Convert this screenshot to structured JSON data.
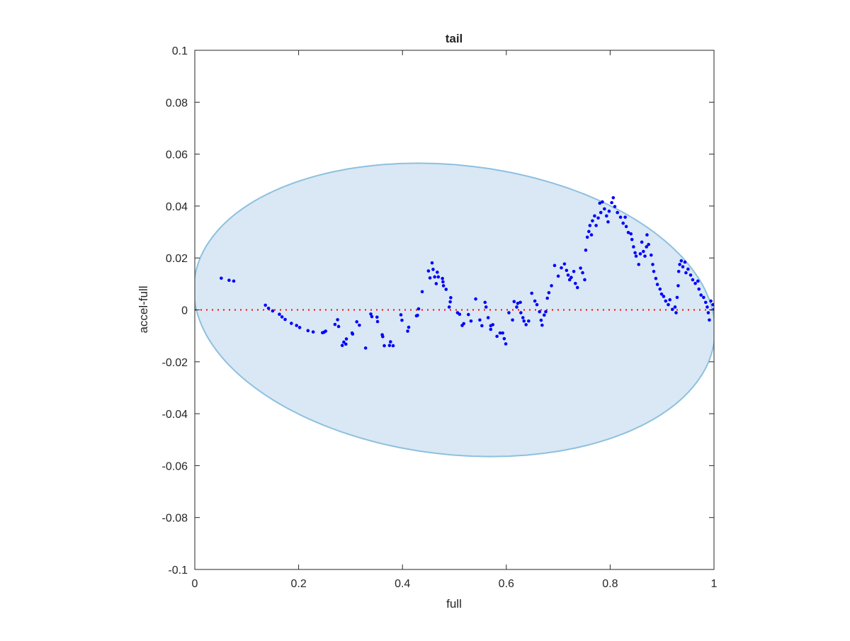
{
  "chart_data": {
    "type": "scatter",
    "title": "tail",
    "xlabel": "full",
    "ylabel": "accel-full",
    "xlim": [
      0,
      1
    ],
    "ylim": [
      -0.1,
      0.1
    ],
    "xticks": [
      0,
      0.2,
      0.4,
      0.6,
      0.8,
      1
    ],
    "xtick_labels": [
      "0",
      "0.2",
      "0.4",
      "0.6",
      "0.8",
      "1"
    ],
    "yticks": [
      0.1,
      0.08,
      0.06,
      0.04,
      0.02,
      0,
      -0.02,
      -0.04,
      -0.06,
      -0.08,
      -0.1
    ],
    "ytick_labels": [
      "0.1",
      "0.08",
      "0.06",
      "0.04",
      "0.02",
      "0",
      "-0.02",
      "-0.04",
      "-0.06",
      "-0.08",
      "-0.1"
    ],
    "grid": false,
    "colors": {
      "points": "#0000ff",
      "zero_line": "#ff0000",
      "ellipse_fill": "#d9e8f4",
      "ellipse_edge": "#8dc0e0"
    },
    "reference_line": {
      "y": 0,
      "style": "dotted"
    },
    "ellipse": {
      "cx": 0.5,
      "cy": 0,
      "rx": 0.497,
      "ry": 0.0565,
      "skew_x": -0.07
    },
    "points": [
      [
        0.051,
        0.0122
      ],
      [
        0.066,
        0.0114
      ],
      [
        0.075,
        0.0111
      ],
      [
        0.136,
        0.0018
      ],
      [
        0.142,
        0.0006
      ],
      [
        0.15,
        -0.0004
      ],
      [
        0.163,
        -0.0017
      ],
      [
        0.168,
        -0.0027
      ],
      [
        0.174,
        -0.0037
      ],
      [
        0.186,
        -0.0052
      ],
      [
        0.196,
        -0.006
      ],
      [
        0.202,
        -0.0068
      ],
      [
        0.218,
        -0.008
      ],
      [
        0.228,
        -0.0085
      ],
      [
        0.246,
        -0.0088
      ],
      [
        0.249,
        -0.0086
      ],
      [
        0.252,
        -0.0082
      ],
      [
        0.27,
        -0.0056
      ],
      [
        0.275,
        -0.0038
      ],
      [
        0.277,
        -0.0064
      ],
      [
        0.284,
        -0.0137
      ],
      [
        0.287,
        -0.0124
      ],
      [
        0.291,
        -0.0132
      ],
      [
        0.292,
        -0.0112
      ],
      [
        0.303,
        -0.0089
      ],
      [
        0.304,
        -0.0093
      ],
      [
        0.312,
        -0.0046
      ],
      [
        0.317,
        -0.0059
      ],
      [
        0.329,
        -0.0147
      ],
      [
        0.339,
        -0.0016
      ],
      [
        0.341,
        -0.0026
      ],
      [
        0.351,
        -0.0028
      ],
      [
        0.352,
        -0.0045
      ],
      [
        0.361,
        -0.0096
      ],
      [
        0.362,
        -0.0103
      ],
      [
        0.365,
        -0.0138
      ],
      [
        0.377,
        -0.0123
      ],
      [
        0.375,
        -0.0137
      ],
      [
        0.382,
        -0.0138
      ],
      [
        0.397,
        -0.0019
      ],
      [
        0.399,
        -0.004
      ],
      [
        0.41,
        -0.0082
      ],
      [
        0.412,
        -0.0067
      ],
      [
        0.427,
        -0.0023
      ],
      [
        0.429,
        -0.0021
      ],
      [
        0.431,
        0.0004
      ],
      [
        0.438,
        0.007
      ],
      [
        0.45,
        0.015
      ],
      [
        0.453,
        0.0123
      ],
      [
        0.457,
        0.0181
      ],
      [
        0.459,
        0.0156
      ],
      [
        0.462,
        0.0127
      ],
      [
        0.465,
        0.0101
      ],
      [
        0.467,
        0.0145
      ],
      [
        0.469,
        0.0127
      ],
      [
        0.477,
        0.0121
      ],
      [
        0.478,
        0.0108
      ],
      [
        0.479,
        0.0093
      ],
      [
        0.484,
        0.0079
      ],
      [
        0.493,
        0.0047
      ],
      [
        0.492,
        0.0031
      ],
      [
        0.49,
        0.0011
      ],
      [
        0.506,
        -0.0011
      ],
      [
        0.51,
        -0.0017
      ],
      [
        0.515,
        -0.006
      ],
      [
        0.518,
        -0.0053
      ],
      [
        0.527,
        -0.0018
      ],
      [
        0.532,
        -0.0043
      ],
      [
        0.541,
        0.0042
      ],
      [
        0.549,
        -0.0039
      ],
      [
        0.553,
        -0.0061
      ],
      [
        0.559,
        0.0029
      ],
      [
        0.561,
        0.0011
      ],
      [
        0.565,
        -0.003
      ],
      [
        0.57,
        -0.0061
      ],
      [
        0.574,
        -0.0057
      ],
      [
        0.57,
        -0.0075
      ],
      [
        0.582,
        -0.0102
      ],
      [
        0.588,
        -0.0089
      ],
      [
        0.593,
        -0.0089
      ],
      [
        0.596,
        -0.0111
      ],
      [
        0.599,
        -0.0131
      ],
      [
        0.605,
        -0.0011
      ],
      [
        0.612,
        -0.0039
      ],
      [
        0.615,
        0.0032
      ],
      [
        0.62,
        0.0011
      ],
      [
        0.622,
        0.0025
      ],
      [
        0.627,
        0.0029
      ],
      [
        0.628,
        -0.0011
      ],
      [
        0.632,
        -0.003
      ],
      [
        0.634,
        -0.0043
      ],
      [
        0.638,
        -0.0057
      ],
      [
        0.643,
        -0.0043
      ],
      [
        0.649,
        0.0064
      ],
      [
        0.655,
        0.0034
      ],
      [
        0.659,
        0.002
      ],
      [
        0.664,
        -0.0007
      ],
      [
        0.667,
        -0.004
      ],
      [
        0.669,
        -0.0059
      ],
      [
        0.673,
        -0.002
      ],
      [
        0.676,
        -0.0007
      ],
      [
        0.679,
        0.0045
      ],
      [
        0.682,
        0.0066
      ],
      [
        0.687,
        0.0093
      ],
      [
        0.693,
        0.0171
      ],
      [
        0.7,
        0.013
      ],
      [
        0.706,
        0.0162
      ],
      [
        0.712,
        0.0177
      ],
      [
        0.716,
        0.0152
      ],
      [
        0.719,
        0.0134
      ],
      [
        0.722,
        0.0116
      ],
      [
        0.725,
        0.0125
      ],
      [
        0.73,
        0.0148
      ],
      [
        0.733,
        0.0102
      ],
      [
        0.737,
        0.0086
      ],
      [
        0.743,
        0.0161
      ],
      [
        0.747,
        0.0143
      ],
      [
        0.751,
        0.0116
      ],
      [
        0.753,
        0.023
      ],
      [
        0.756,
        0.028
      ],
      [
        0.759,
        0.0302
      ],
      [
        0.761,
        0.0325
      ],
      [
        0.764,
        0.0289
      ],
      [
        0.766,
        0.0343
      ],
      [
        0.77,
        0.0362
      ],
      [
        0.773,
        0.0325
      ],
      [
        0.777,
        0.0354
      ],
      [
        0.78,
        0.0411
      ],
      [
        0.782,
        0.0375
      ],
      [
        0.785,
        0.0416
      ],
      [
        0.789,
        0.0389
      ],
      [
        0.793,
        0.0362
      ],
      [
        0.796,
        0.0339
      ],
      [
        0.798,
        0.038
      ],
      [
        0.803,
        0.0413
      ],
      [
        0.806,
        0.0432
      ],
      [
        0.809,
        0.0398
      ],
      [
        0.814,
        0.0375
      ],
      [
        0.82,
        0.0357
      ],
      [
        0.825,
        0.0334
      ],
      [
        0.829,
        0.0357
      ],
      [
        0.831,
        0.0321
      ],
      [
        0.835,
        0.0298
      ],
      [
        0.84,
        0.0293
      ],
      [
        0.842,
        0.0271
      ],
      [
        0.845,
        0.0243
      ],
      [
        0.848,
        0.022
      ],
      [
        0.85,
        0.0207
      ],
      [
        0.855,
        0.0175
      ],
      [
        0.858,
        0.0216
      ],
      [
        0.861,
        0.0261
      ],
      [
        0.864,
        0.0225
      ],
      [
        0.867,
        0.0207
      ],
      [
        0.87,
        0.0243
      ],
      [
        0.871,
        0.0289
      ],
      [
        0.874,
        0.0252
      ],
      [
        0.879,
        0.0211
      ],
      [
        0.882,
        0.0175
      ],
      [
        0.884,
        0.0148
      ],
      [
        0.888,
        0.0121
      ],
      [
        0.891,
        0.0098
      ],
      [
        0.896,
        0.008
      ],
      [
        0.899,
        0.0061
      ],
      [
        0.903,
        0.0052
      ],
      [
        0.907,
        0.0034
      ],
      [
        0.912,
        0.002
      ],
      [
        0.915,
        0.0039
      ],
      [
        0.92,
        0.0002
      ],
      [
        0.925,
        0.0011
      ],
      [
        0.927,
        -0.0011
      ],
      [
        0.929,
        0.0048
      ],
      [
        0.931,
        0.0093
      ],
      [
        0.932,
        0.0148
      ],
      [
        0.934,
        0.0175
      ],
      [
        0.937,
        0.0189
      ],
      [
        0.94,
        0.0166
      ],
      [
        0.944,
        0.0184
      ],
      [
        0.946,
        0.0143
      ],
      [
        0.95,
        0.0157
      ],
      [
        0.955,
        0.0134
      ],
      [
        0.959,
        0.0116
      ],
      [
        0.964,
        0.0102
      ],
      [
        0.969,
        0.0111
      ],
      [
        0.971,
        0.008
      ],
      [
        0.975,
        0.0057
      ],
      [
        0.98,
        0.0048
      ],
      [
        0.984,
        0.0029
      ],
      [
        0.987,
        0.0011
      ],
      [
        0.989,
        -0.0011
      ],
      [
        0.991,
        -0.0039
      ],
      [
        0.994,
        0.0034
      ],
      [
        0.998,
        0.002
      ],
      [
        1.0,
        0.0002
      ]
    ]
  }
}
